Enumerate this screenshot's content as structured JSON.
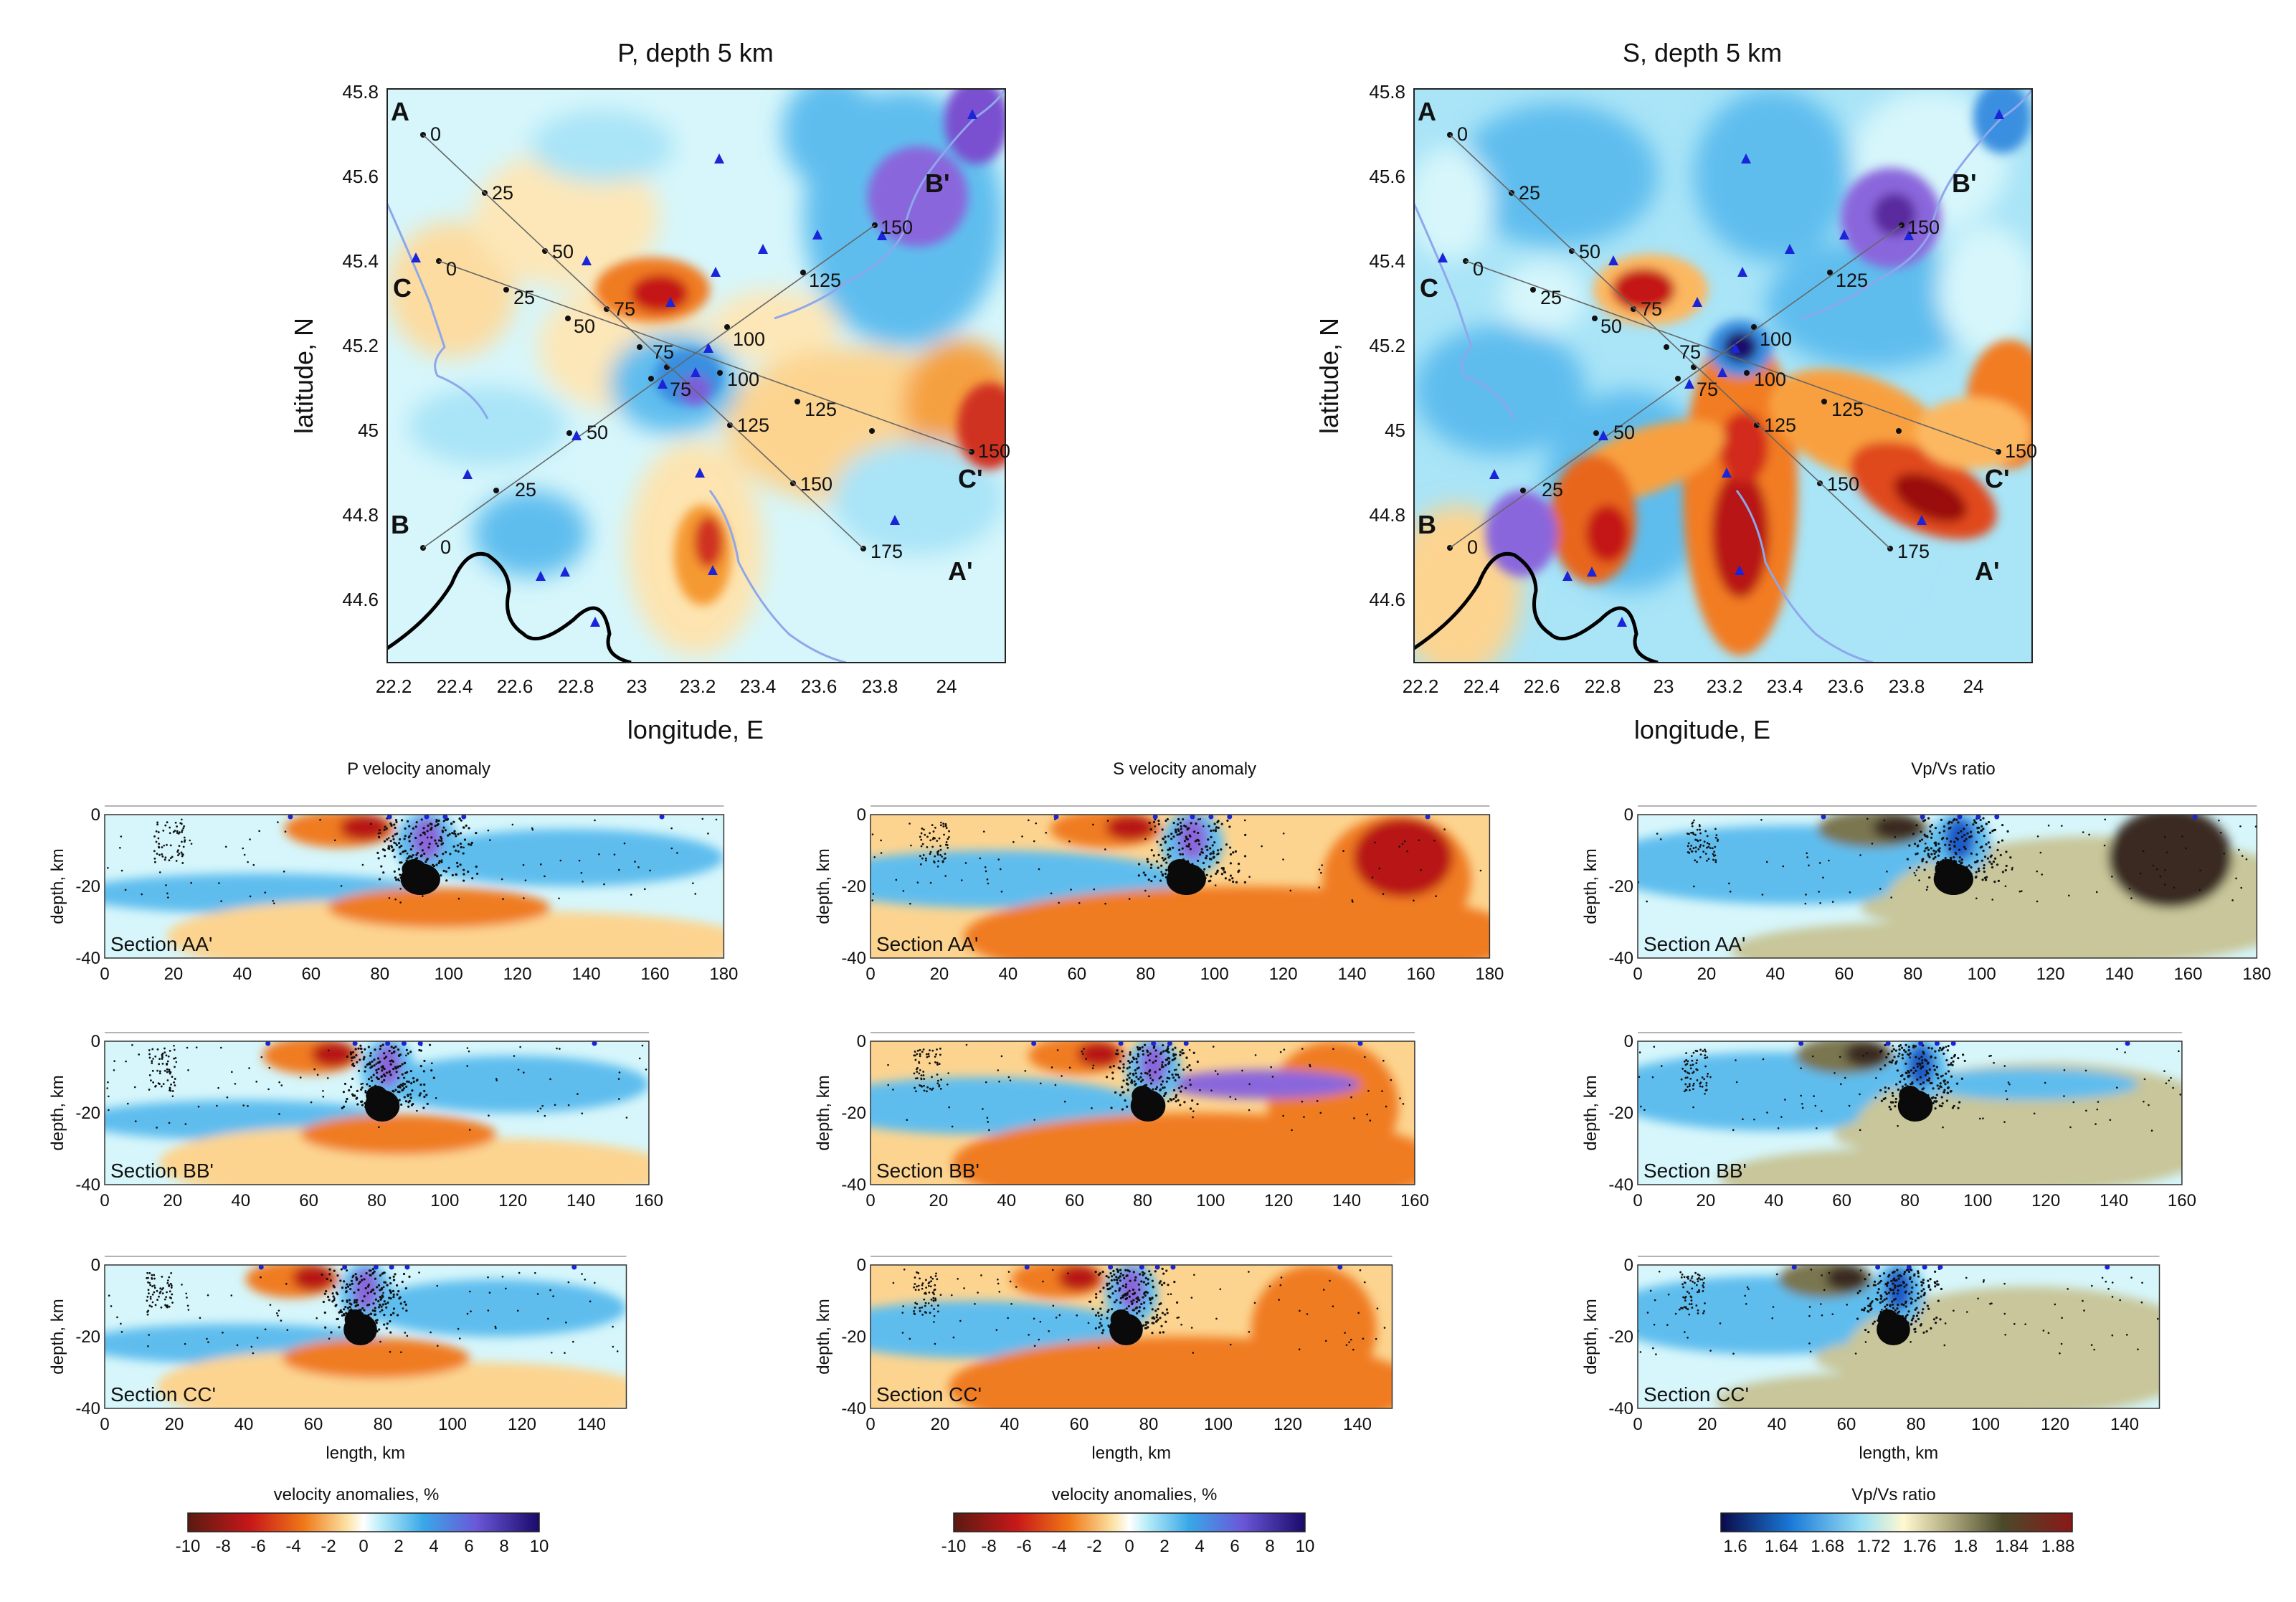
{
  "chart_data": [
    {
      "type": "heatmap",
      "title": "P, depth 5 km",
      "xlabel": "longitude, E",
      "ylabel": "latitude, N",
      "xlim": [
        22.2,
        24.2
      ],
      "ylim": [
        44.45,
        45.8
      ],
      "xticks": [
        "22.2",
        "22.4",
        "22.6",
        "22.8",
        "23",
        "23.2",
        "23.4",
        "23.6",
        "23.8",
        "24"
      ],
      "yticks": [
        "45.8",
        "45.6",
        "45.4",
        "45.2",
        "45",
        "44.8",
        "44.6"
      ],
      "profiles": [
        {
          "name": "AA'",
          "start_label": "A",
          "end_label": "A'",
          "marks": [
            "0",
            "25",
            "50",
            "75",
            "100",
            "125",
            "150",
            "175"
          ]
        },
        {
          "name": "BB'",
          "start_label": "B",
          "end_label": "B'",
          "marks": [
            "0",
            "25",
            "50",
            "75",
            "100",
            "125",
            "150"
          ]
        },
        {
          "name": "CC'",
          "start_label": "C",
          "end_label": "C'",
          "marks": [
            "0",
            "25",
            "50",
            "75",
            "100",
            "125",
            "150"
          ]
        }
      ]
    },
    {
      "type": "heatmap",
      "title": "S, depth 5 km",
      "xlabel": "longitude, E",
      "ylabel": "latitude, N",
      "xlim": [
        22.2,
        24.2
      ],
      "ylim": [
        44.45,
        45.8
      ],
      "xticks": [
        "22.2",
        "22.4",
        "22.6",
        "22.8",
        "23",
        "23.2",
        "23.4",
        "23.6",
        "23.8",
        "24"
      ],
      "yticks": [
        "45.8",
        "45.6",
        "45.4",
        "45.2",
        "45",
        "44.8",
        "44.6"
      ],
      "profiles": [
        {
          "name": "AA'",
          "start_label": "A",
          "end_label": "A'",
          "marks": [
            "0",
            "25",
            "50",
            "75",
            "100",
            "125",
            "150",
            "175"
          ]
        },
        {
          "name": "BB'",
          "start_label": "B",
          "end_label": "B'",
          "marks": [
            "0",
            "25",
            "50",
            "75",
            "100",
            "125",
            "150"
          ]
        },
        {
          "name": "CC'",
          "start_label": "C",
          "end_label": "C'",
          "marks": [
            "0",
            "25",
            "50",
            "75",
            "100",
            "125",
            "150"
          ]
        }
      ]
    }
  ],
  "columns": [
    {
      "title": "P velocity anomaly",
      "colorbar": "velocity anomalies, %",
      "ticks": [
        "-10",
        "-8",
        "-6",
        "-4",
        "-2",
        "0",
        "2",
        "4",
        "6",
        "8",
        "10"
      ]
    },
    {
      "title": "S velocity anomaly",
      "colorbar": "velocity anomalies, %",
      "ticks": [
        "-10",
        "-8",
        "-6",
        "-4",
        "-2",
        "0",
        "2",
        "4",
        "6",
        "8",
        "10"
      ]
    },
    {
      "title": "Vp/Vs ratio",
      "colorbar": "Vp/Vs ratio",
      "ticks": [
        "1.6",
        "1.64",
        "1.68",
        "1.72",
        "1.76",
        "1.8",
        "1.84",
        "1.88"
      ]
    }
  ],
  "sections": [
    {
      "label": "Section AA'",
      "xticks": [
        "0",
        "20",
        "40",
        "60",
        "80",
        "100",
        "120",
        "140",
        "160",
        "180"
      ]
    },
    {
      "label": "Section BB'",
      "xticks": [
        "0",
        "20",
        "40",
        "60",
        "80",
        "100",
        "120",
        "140",
        "160"
      ]
    },
    {
      "label": "Section CC'",
      "xticks": [
        "0",
        "20",
        "40",
        "60",
        "80",
        "100",
        "120",
        "140"
      ]
    }
  ],
  "section_axes": {
    "ylabel": "depth, km",
    "xlabel": "length, km",
    "yticks": [
      "0",
      "-20",
      "-40"
    ]
  },
  "colors": {
    "bg": "#ffffff",
    "pos_anomaly": "#3a8fe0",
    "neg_anomaly": "#e08a1e",
    "strong_neg": "#b01010",
    "strong_pos": "#5a2a9e",
    "stations": "#1a24d8",
    "events": "#111111"
  }
}
